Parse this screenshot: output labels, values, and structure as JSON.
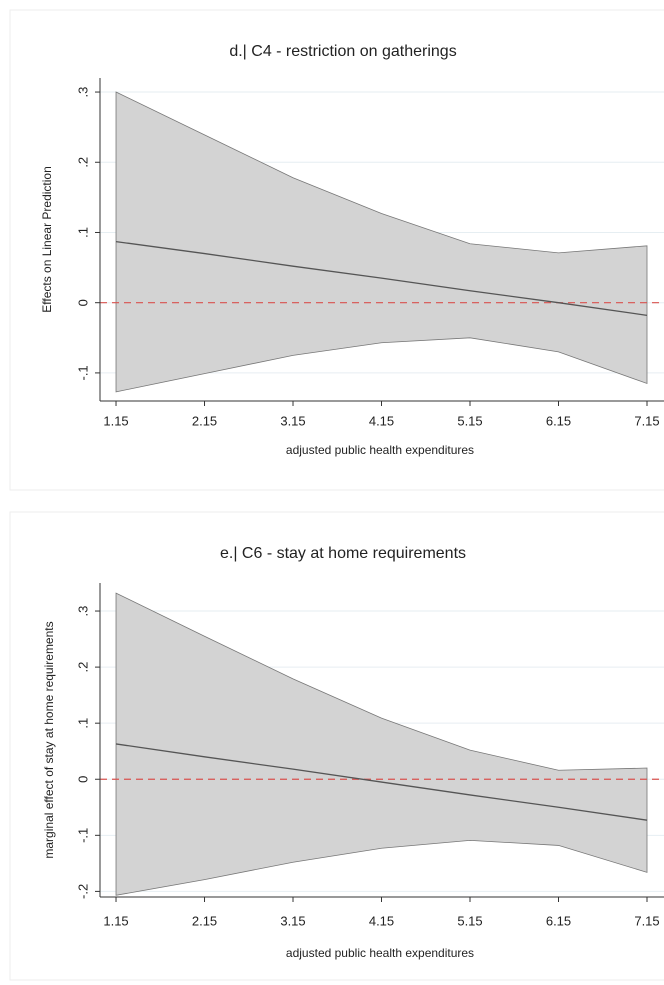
{
  "chart_data": [
    {
      "type": "line",
      "title": "d.| C4 - restriction on gatherings",
      "x_label": "adjusted public health expenditures",
      "y_label": "Effects on Linear Prediction",
      "x": [
        1.15,
        2.15,
        3.15,
        4.15,
        5.15,
        6.15,
        7.15
      ],
      "values": [
        0.087,
        0.07,
        0.052,
        0.035,
        0.017,
        0,
        -0.018
      ],
      "ci_upper": [
        0.3,
        0.239,
        0.178,
        0.127,
        0.084,
        0.071,
        0.081
      ],
      "ci_lower": [
        -0.127,
        -0.101,
        -0.075,
        -0.057,
        -0.05,
        -0.07,
        -0.115
      ],
      "color": "#555555",
      "band_color": "#d3d3d3",
      "xlim": [
        0.969,
        7.342
      ],
      "ylim": [
        -0.14,
        0.32
      ],
      "xticks": [
        1.15,
        2.15,
        3.15,
        4.15,
        5.15,
        6.15,
        7.15
      ],
      "yticks": [
        {
          "value": -0.1,
          "label": "-.1"
        },
        0,
        {
          "value": 0.1,
          "label": ".1"
        },
        {
          "value": 0.2,
          "label": ".2"
        },
        {
          "value": 0.3,
          "label": ".3"
        }
      ],
      "reference_line": {
        "value": 0,
        "color": "#d9534f"
      },
      "grid": true
    },
    {
      "type": "line",
      "title": "e.| C6 - stay at home requirements",
      "x_label": "adjusted public health expenditures",
      "y_label": "marginal effect of stay at home requirements",
      "x": [
        1.15,
        2.15,
        3.15,
        4.15,
        5.15,
        6.15,
        7.15
      ],
      "values": [
        0.063,
        0.04,
        0.018,
        -0.005,
        -0.028,
        -0.05,
        -0.073
      ],
      "ci_upper": [
        0.332,
        0.255,
        0.179,
        0.109,
        0.052,
        0.016,
        0.02
      ],
      "ci_lower": [
        -0.207,
        -0.179,
        -0.148,
        -0.123,
        -0.109,
        -0.118,
        -0.166
      ],
      "color": "#555555",
      "band_color": "#d3d3d3",
      "xlim": [
        0.969,
        7.342
      ],
      "ylim": [
        -0.21,
        0.35
      ],
      "xticks": [
        1.15,
        2.15,
        3.15,
        4.15,
        5.15,
        6.15,
        7.15
      ],
      "yticks": [
        {
          "value": -0.2,
          "label": "-.2"
        },
        {
          "value": -0.1,
          "label": "-.1"
        },
        0,
        {
          "value": 0.1,
          "label": ".1"
        },
        {
          "value": 0.2,
          "label": ".2"
        },
        {
          "value": 0.3,
          "label": ".3"
        }
      ],
      "reference_line": {
        "value": 0,
        "color": "#d9534f"
      },
      "grid": true
    }
  ]
}
